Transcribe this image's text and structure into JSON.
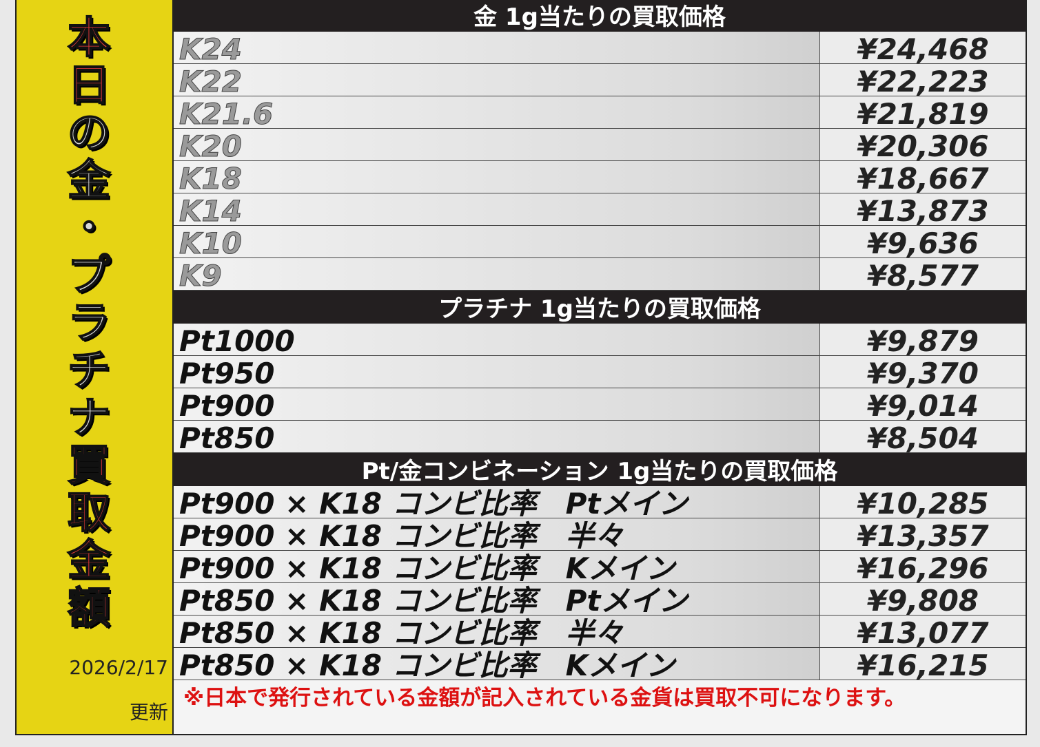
{
  "sidebar": {
    "title_chars": [
      "本",
      "日",
      "の",
      "金",
      "・",
      "プ",
      "ラ",
      "チ",
      "ナ",
      "買",
      "取",
      "金",
      "額"
    ],
    "date": "2026/2/17",
    "updated_label": "更新"
  },
  "gold": {
    "header": "金 1g当たりの買取価格",
    "rows": [
      {
        "name": "K24",
        "price": "¥24,468"
      },
      {
        "name": "K22",
        "price": "¥22,223"
      },
      {
        "name": "K21.6",
        "price": "¥21,819"
      },
      {
        "name": "K20",
        "price": "¥20,306"
      },
      {
        "name": "K18",
        "price": "¥18,667"
      },
      {
        "name": "K14",
        "price": "¥13,873"
      },
      {
        "name": "K10",
        "price": "¥9,636"
      },
      {
        "name": "K9",
        "price": "¥8,577"
      }
    ]
  },
  "platinum": {
    "header": "プラチナ 1g当たりの買取価格",
    "rows": [
      {
        "name": "Pt1000",
        "price": "¥9,879"
      },
      {
        "name": "Pt950",
        "price": "¥9,370"
      },
      {
        "name": "Pt900",
        "price": "¥9,014"
      },
      {
        "name": "Pt850",
        "price": "¥8,504"
      }
    ]
  },
  "combination": {
    "header": "Pt/金コンビネーション 1g当たりの買取価格",
    "rows": [
      {
        "name": "Pt900 × K18 コンビ比率　Ptメイン",
        "price": "¥10,285"
      },
      {
        "name": "Pt900 × K18 コンビ比率　半々",
        "price": "¥13,357"
      },
      {
        "name": "Pt900 × K18 コンビ比率　Kメイン",
        "price": "¥16,296"
      },
      {
        "name": "Pt850 × K18 コンビ比率　Ptメイン",
        "price": "¥9,808"
      },
      {
        "name": "Pt850 × K18 コンビ比率　半々",
        "price": "¥13,077"
      },
      {
        "name": "Pt850 × K18 コンビ比率　Kメイン",
        "price": "¥16,215"
      }
    ]
  },
  "note": "※日本で発行されている金額が記入されている金貨は買取不可になります。",
  "colors": {
    "sidebar": "#e6d414",
    "header": "#231f20",
    "note": "#dd1111",
    "title_red": "#e63a3a"
  }
}
